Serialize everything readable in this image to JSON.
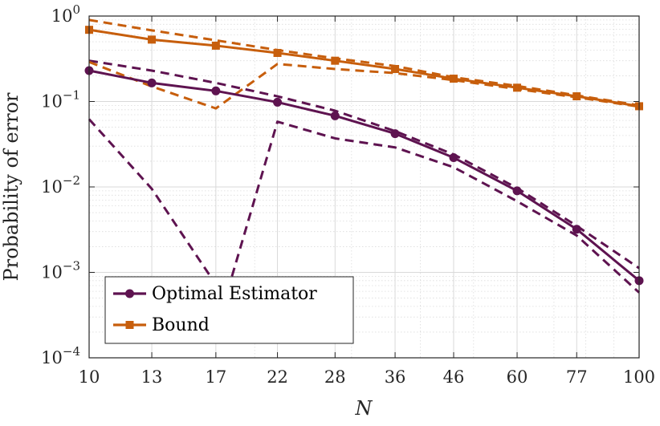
{
  "chart_data": {
    "type": "line",
    "xscale": "log",
    "yscale": "log",
    "xlim": [
      10,
      100
    ],
    "ylim": [
      0.0001,
      1
    ],
    "grid": true,
    "minor_grid": true,
    "xlabel": "N",
    "ylabel": "Probability of error",
    "x_ticks": [
      10,
      13,
      17,
      22,
      28,
      36,
      46,
      60,
      77,
      100
    ],
    "x_tick_labels": [
      "10",
      "13",
      "17",
      "22",
      "28",
      "36",
      "46",
      "60",
      "77",
      "100"
    ],
    "y_ticks": [
      0.0001,
      0.001,
      0.01,
      0.1,
      1
    ],
    "y_tick_labels": [
      {
        "base": "10",
        "exp": "−4"
      },
      {
        "base": "10",
        "exp": "−3"
      },
      {
        "base": "10",
        "exp": "−2"
      },
      {
        "base": "10",
        "exp": "−1"
      },
      {
        "base": "10",
        "exp": "0"
      }
    ],
    "legend_position": "bottom-left",
    "series": [
      {
        "name": "Optimal Estimator",
        "color": "#5e1350",
        "marker": "circle",
        "style": "solid",
        "x": [
          10,
          13,
          17,
          22,
          28,
          36,
          46,
          60,
          77,
          100
        ],
        "y": [
          0.23,
          0.165,
          0.133,
          0.098,
          0.068,
          0.042,
          0.022,
          0.009,
          0.0032,
          0.0008
        ]
      },
      {
        "name": "Bound",
        "color": "#c75e0c",
        "marker": "square",
        "style": "solid",
        "x": [
          10,
          13,
          17,
          22,
          28,
          36,
          46,
          60,
          77,
          100
        ],
        "y": [
          0.69,
          0.53,
          0.45,
          0.37,
          0.3,
          0.24,
          0.185,
          0.145,
          0.115,
          0.088
        ]
      },
      {
        "color": "#5e1350",
        "style": "dashed",
        "x": [
          10,
          13,
          17,
          22,
          28,
          36,
          46,
          60,
          77,
          100
        ],
        "y": [
          0.3,
          0.23,
          0.165,
          0.115,
          0.078,
          0.045,
          0.024,
          0.0097,
          0.0035,
          0.00112
        ]
      },
      {
        "color": "#5e1350",
        "style": "dashed",
        "x": [
          10,
          13,
          17,
          18,
          22,
          28,
          36,
          46,
          60,
          77,
          100
        ],
        "y": [
          0.062,
          0.0095,
          0.00072,
          0.00072,
          0.058,
          0.037,
          0.029,
          0.017,
          0.0068,
          0.0027,
          0.00058
        ]
      },
      {
        "color": "#c75e0c",
        "style": "dashed",
        "x": [
          10,
          13,
          17,
          22,
          28,
          36,
          46,
          60,
          77,
          100
        ],
        "y": [
          0.9,
          0.68,
          0.52,
          0.4,
          0.32,
          0.26,
          0.192,
          0.152,
          0.118,
          0.09
        ]
      },
      {
        "color": "#c75e0c",
        "style": "dashed",
        "x": [
          10,
          13,
          17,
          22,
          28,
          36,
          46,
          60,
          77,
          100
        ],
        "y": [
          0.29,
          0.15,
          0.083,
          0.275,
          0.24,
          0.215,
          0.178,
          0.14,
          0.112,
          0.087
        ]
      }
    ]
  }
}
